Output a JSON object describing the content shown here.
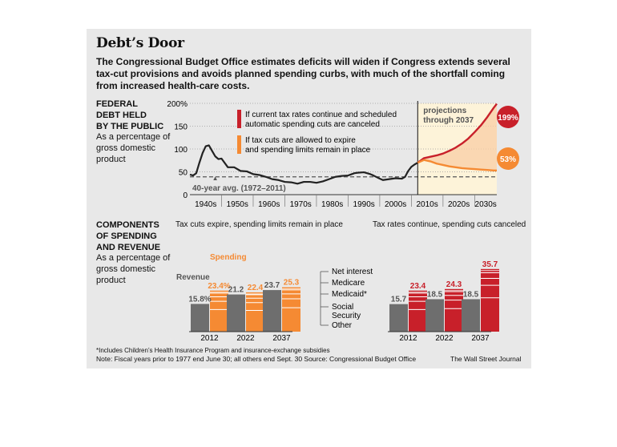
{
  "title": "Debt’s Door",
  "description": "The Congressional Budget Office estimates deficits will widen if Congress extends several tax-cut provisions and avoids planned spending curbs, with much of the shortfall coming from increased health-care costs.",
  "colors": {
    "red": "#c8202a",
    "orange": "#f58a33",
    "gray": "#6e6e6e",
    "panel": "#e8e8e8"
  },
  "debt_section": {
    "title": "FEDERAL\nDEBT HELD\nBY THE PUBLIC",
    "subtitle": "As a percentage of gross domestic product"
  },
  "comp_section": {
    "title": "COMPONENTS\nOF SPENDING\nAND REVENUE",
    "subtitle": "As a percentage of gross domestic product"
  },
  "left_panel_title": "Tax cuts expire, spending limits remain in place",
  "right_panel_title": "Tax rates continue, spending cuts canceled",
  "footnote": "*Includes Children’s Health Insurance Program and insurance-exchange subsidies",
  "note": "Note: Fiscal years prior to 1977 end June 30; all others end Sept. 30    Source: Congressional Budget Office",
  "credit": "The Wall Street Journal",
  "chart_data": [
    {
      "type": "line",
      "x_tick_labels": [
        "1940s",
        "1950s",
        "1960s",
        "1970s",
        "1980s",
        "1990s",
        "2000s",
        "2010s",
        "2020s",
        "2030s"
      ],
      "y_tick_labels": [
        "0",
        "50",
        "100",
        "150",
        "200%"
      ],
      "ylim": [
        0,
        200
      ],
      "xlim": [
        1940,
        2037
      ],
      "grid": true,
      "average": {
        "label": "40-year avg. (1972–2011)",
        "value": 39
      },
      "projection_label": "projections through 2037",
      "projection_start": 2012,
      "legend": [
        {
          "label": "If current tax rates continue and scheduled automatic spending cuts are canceled",
          "color": "#c8202a"
        },
        {
          "label": "If tax cuts are allowed to expire and spending limits remain in place",
          "color": "#f58a33"
        }
      ],
      "series": [
        {
          "color": "#222222",
          "x": [
            1940,
            1941,
            1942,
            1943,
            1944,
            1945,
            1946,
            1947,
            1948,
            1949,
            1950,
            1952,
            1954,
            1956,
            1958,
            1960,
            1962,
            1964,
            1966,
            1968,
            1970,
            1972,
            1974,
            1976,
            1978,
            1980,
            1982,
            1984,
            1986,
            1988,
            1990,
            1992,
            1993,
            1995,
            1997,
            1998,
            2000,
            2001,
            2003,
            2005,
            2007,
            2008,
            2009,
            2010,
            2011,
            2012
          ],
          "y": [
            44,
            42,
            47,
            70,
            91,
            106,
            108,
            96,
            84,
            78,
            79,
            60,
            60,
            52,
            51,
            45,
            43,
            39,
            34,
            32,
            28,
            27,
            24,
            28,
            28,
            26,
            29,
            34,
            39,
            41,
            42,
            47,
            48,
            49,
            45,
            42,
            35,
            32,
            34,
            36,
            35,
            39,
            52,
            61,
            66,
            70
          ]
        },
        {
          "color": "#c8202a",
          "end_label": "199%",
          "x": [
            2012,
            2014,
            2016,
            2018,
            2020,
            2022,
            2024,
            2026,
            2028,
            2030,
            2032,
            2034,
            2036,
            2037
          ],
          "y": [
            70,
            80,
            83,
            86,
            90,
            96,
            103,
            112,
            123,
            137,
            152,
            170,
            190,
            199
          ]
        },
        {
          "color": "#f58a33",
          "end_label": "53%",
          "x": [
            2012,
            2014,
            2016,
            2018,
            2020,
            2022,
            2024,
            2026,
            2028,
            2030,
            2032,
            2034,
            2036,
            2037
          ],
          "y": [
            70,
            76,
            73,
            68,
            65,
            62,
            60,
            58,
            57,
            56,
            55,
            54,
            53,
            53
          ]
        }
      ]
    },
    {
      "type": "bar",
      "categories": [
        "2012",
        "2022",
        "2037"
      ],
      "series": [
        {
          "name": "Revenue",
          "values": [
            15.8,
            21.2,
            23.7
          ],
          "value_labels": [
            "15.8%",
            "21.2",
            "23.7"
          ],
          "color": "#6e6e6e"
        },
        {
          "name": "Spending",
          "values": [
            23.4,
            22.4,
            25.3
          ],
          "value_labels": [
            "23.4%",
            "22.4",
            "25.3"
          ],
          "color": "#f58a33"
        }
      ],
      "ylim": [
        0,
        36
      ],
      "component_legend": [
        "Net interest",
        "Medicare",
        "Medicaid*",
        "Social\nSecurity",
        "Other"
      ]
    },
    {
      "type": "bar",
      "categories": [
        "2012",
        "2022",
        "2037"
      ],
      "series": [
        {
          "name": "Revenue",
          "values": [
            15.7,
            18.5,
            18.5
          ],
          "value_labels": [
            "15.7",
            "18.5",
            "18.5"
          ],
          "color": "#6e6e6e"
        },
        {
          "name": "Spending",
          "values": [
            23.4,
            24.3,
            35.7
          ],
          "value_labels": [
            "23.4",
            "24.3",
            "35.7"
          ],
          "color": "#c8202a"
        }
      ],
      "ylim": [
        0,
        36
      ]
    }
  ]
}
